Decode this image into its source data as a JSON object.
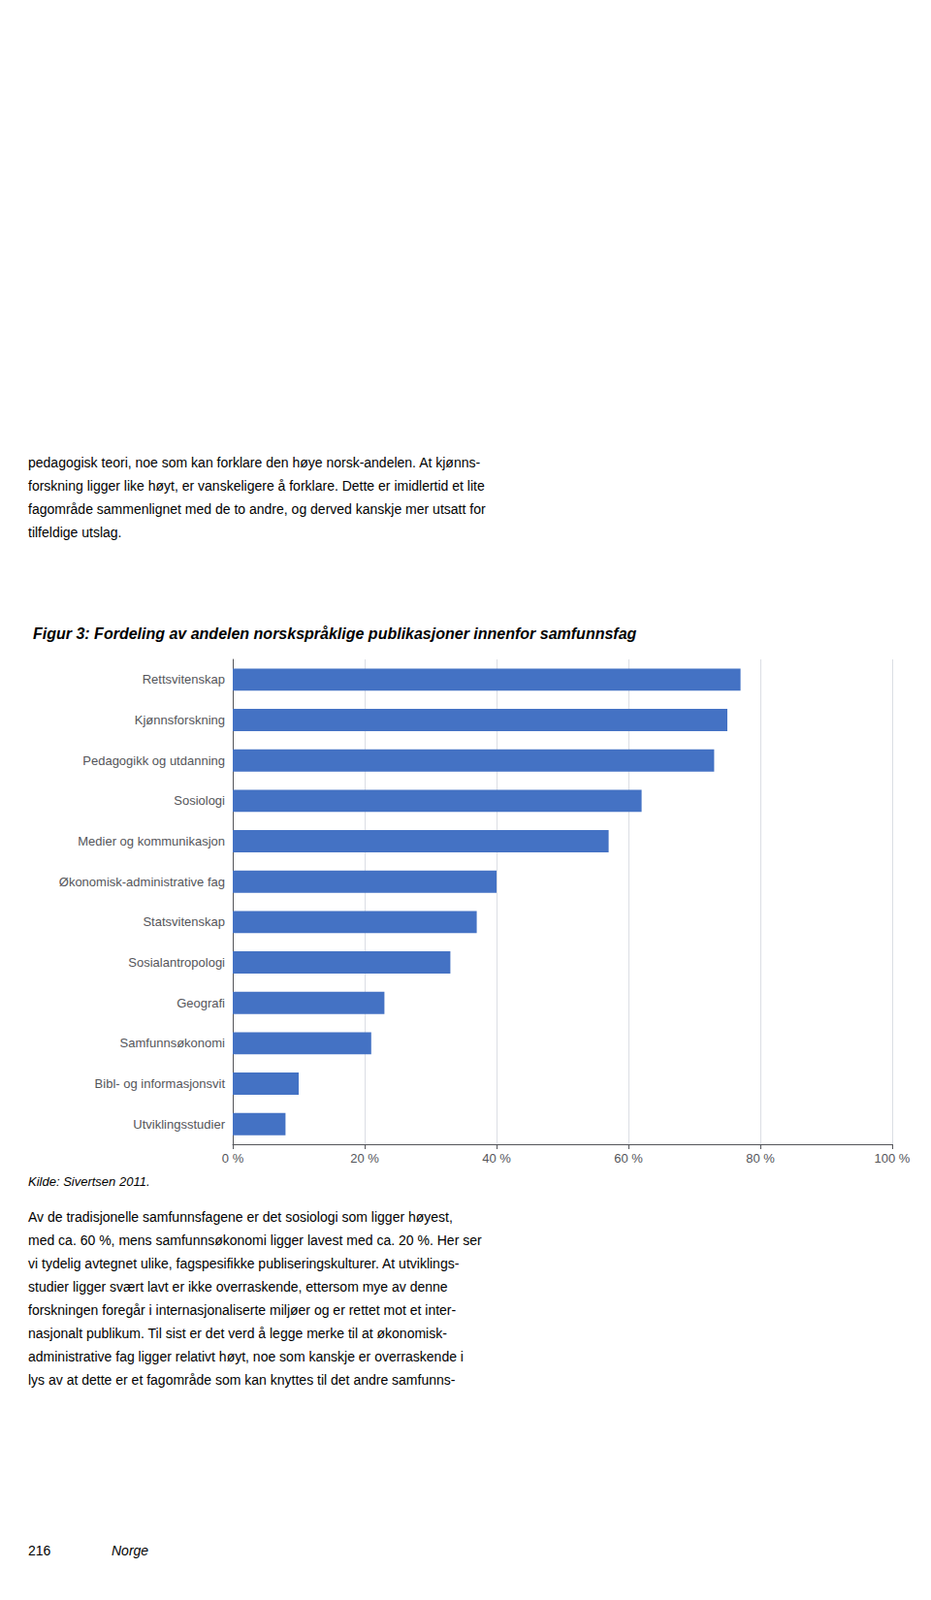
{
  "chart_data": {
    "type": "bar",
    "orientation": "horizontal",
    "title": "Figur 3: Fordeling av andelen norskspråklige publikasjoner innenfor samfunnsfag",
    "categories": [
      "Rettsvitenskap",
      "Kjønnsforskning",
      "Pedagogikk og utdanning",
      "Sosiologi",
      "Medier og kommunikasjon",
      "Økonomisk-administrative fag",
      "Statsvitenskap",
      "Sosialantropologi",
      "Geografi",
      "Samfunnsøkonomi",
      "Bibl- og informasjonsvit",
      "Utviklingsstudier"
    ],
    "values": [
      77,
      75,
      73,
      62,
      57,
      40,
      37,
      33,
      23,
      21,
      10,
      8
    ],
    "color": "#4472C4",
    "xlim": [
      0,
      100
    ],
    "xticks": [
      {
        "value": 0,
        "label": "0 %"
      },
      {
        "value": 20,
        "label": "20 %"
      },
      {
        "value": 40,
        "label": "40 %"
      },
      {
        "value": 60,
        "label": "60 %"
      },
      {
        "value": 80,
        "label": "80 %"
      },
      {
        "value": 100,
        "label": "100 %"
      }
    ],
    "grid": true,
    "text_above": [
      "pedagogisk teori, noe som kan forklare den høye norsk-andelen. At kjønns-",
      "forskning ligger like høyt, er vanskeligere å forklare. Dette er imidlertid et lite",
      "fagområde sammenlignet med de to andre, og derved kanskje mer utsatt for",
      "tilfeldige utslag."
    ],
    "source": "Kilde: Sivertsen 2011.",
    "text_below": [
      "Av de tradisjonelle samfunnsfagene er det sosiologi som ligger høyest,",
      "med ca. 60 %, mens samfunnsøkonomi ligger lavest med ca. 20 %. Her ser",
      "vi tydelig avtegnet ulike, fagspesifikke publiseringskulturer. At utviklings-",
      "studier ligger svært lavt er ikke overraskende, ettersom mye av denne",
      "forskningen foregår i internasjonaliserte miljøer og er rettet mot et inter-",
      "nasjonalt publikum. Til sist er det verd å legge merke til at økonomisk-",
      "administrative fag ligger relativt høyt, noe som kanskje er overraskende i",
      "lys av at dette er et fagområde som kan knyttes til det andre samfunns-"
    ],
    "footer": [
      "216",
      "Norge"
    ]
  }
}
